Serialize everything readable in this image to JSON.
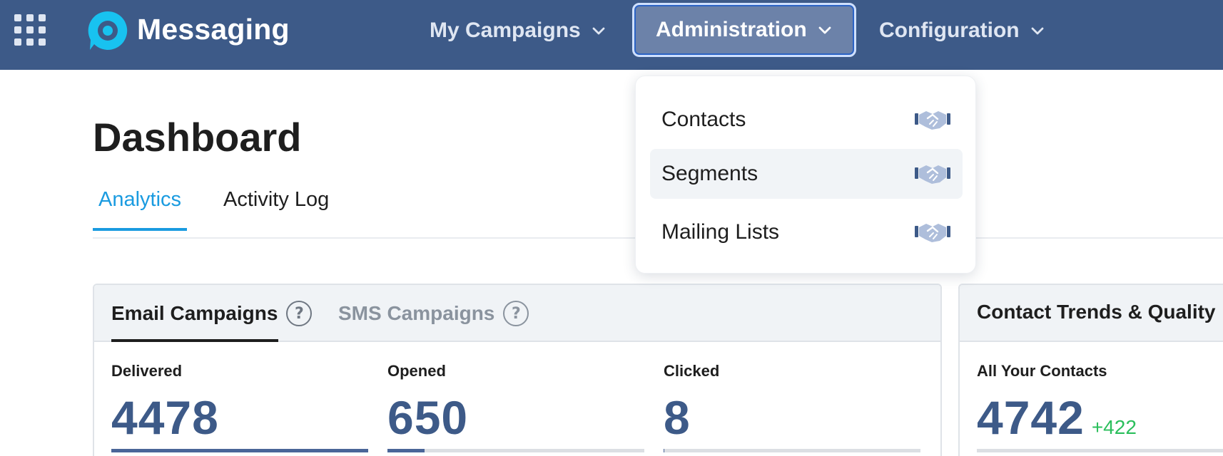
{
  "app": {
    "name": "Messaging"
  },
  "nav": {
    "items": [
      {
        "label": "My Campaigns"
      },
      {
        "label": "Administration",
        "active": true
      },
      {
        "label": "Configuration"
      }
    ]
  },
  "admin_menu": {
    "items": [
      {
        "label": "Contacts",
        "icon": "handshake-icon"
      },
      {
        "label": "Segments",
        "icon": "handshake-icon",
        "hovered": true
      },
      {
        "label": "Mailing Lists",
        "icon": "handshake-icon"
      }
    ]
  },
  "page": {
    "title": "Dashboard",
    "tabs": [
      {
        "label": "Analytics",
        "active": true
      },
      {
        "label": "Activity Log"
      }
    ]
  },
  "campaigns_card": {
    "tabs": [
      {
        "label": "Email Campaigns",
        "active": true,
        "help": "?"
      },
      {
        "label": "SMS Campaigns",
        "help": "?"
      }
    ],
    "metrics": [
      {
        "label": "Delivered",
        "value": "4478",
        "progress": 1.0
      },
      {
        "label": "Opened",
        "value": "650",
        "progress": 0.145
      },
      {
        "label": "Clicked",
        "value": "8",
        "progress": 0.002
      }
    ]
  },
  "trends_card": {
    "title": "Contact Trends & Quality",
    "metric": {
      "label": "All Your Contacts",
      "value": "4742",
      "delta": "+422"
    }
  },
  "colors": {
    "topbar": "#3d5a88",
    "accent": "#1a9be0",
    "metric_value": "#3d5a88",
    "positive": "#2bbf5c",
    "logo": "#18c2f0"
  }
}
